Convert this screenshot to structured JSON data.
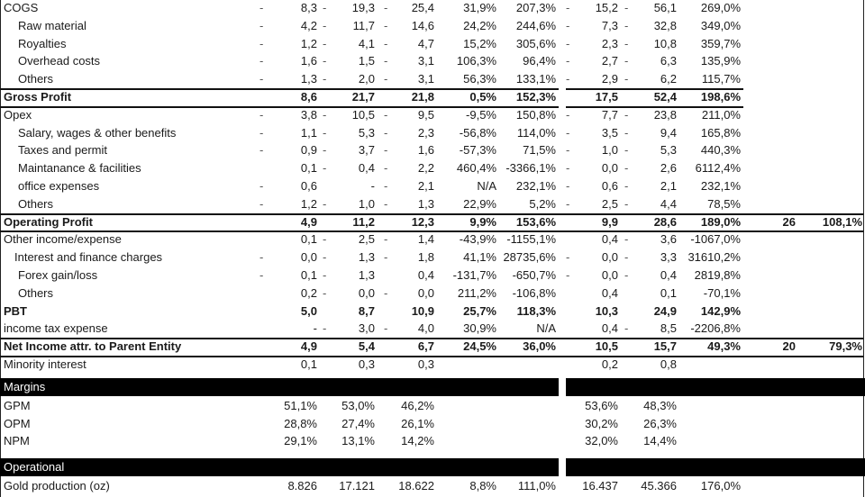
{
  "income_statement": {
    "rows": [
      {
        "label": "COGS",
        "indent": 0,
        "bold": false,
        "d0": "-",
        "a": "8,3",
        "da": "-",
        "b": "19,3",
        "db": "-",
        "c": "25,4",
        "d": "31,9%",
        "e": "207,3%",
        "d1": "-",
        "f": "15,2",
        "df": "-",
        "g": "56,1",
        "h": "269,0%",
        "i": "",
        "j": ""
      },
      {
        "label": "Raw material",
        "indent": 1,
        "bold": false,
        "d0": "-",
        "a": "4,2",
        "da": "-",
        "b": "11,7",
        "db": "-",
        "c": "14,6",
        "d": "24,2%",
        "e": "244,6%",
        "d1": "-",
        "f": "7,3",
        "df": "-",
        "g": "32,8",
        "h": "349,0%",
        "i": "",
        "j": ""
      },
      {
        "label": "Royalties",
        "indent": 1,
        "bold": false,
        "d0": "-",
        "a": "1,2",
        "da": "-",
        "b": "4,1",
        "db": "-",
        "c": "4,7",
        "d": "15,2%",
        "e": "305,6%",
        "d1": "-",
        "f": "2,3",
        "df": "-",
        "g": "10,8",
        "h": "359,7%",
        "i": "",
        "j": ""
      },
      {
        "label": "Overhead costs",
        "indent": 1,
        "bold": false,
        "d0": "-",
        "a": "1,6",
        "da": "-",
        "b": "1,5",
        "db": "-",
        "c": "3,1",
        "d": "106,3%",
        "e": "96,4%",
        "d1": "-",
        "f": "2,7",
        "df": "-",
        "g": "6,3",
        "h": "135,9%",
        "i": "",
        "j": ""
      },
      {
        "label": "Others",
        "indent": 1,
        "bold": false,
        "d0": "-",
        "a": "1,3",
        "da": "-",
        "b": "2,0",
        "db": "-",
        "c": "3,1",
        "d": "56,3%",
        "e": "133,1%",
        "d1": "-",
        "f": "2,9",
        "df": "-",
        "g": "6,2",
        "h": "115,7%",
        "i": "",
        "j": ""
      },
      {
        "label": "Gross Profit",
        "indent": 0,
        "bold": true,
        "d0": "",
        "a": "8,6",
        "da": "",
        "b": "21,7",
        "db": "",
        "c": "21,8",
        "d": "0,5%",
        "e": "152,3%",
        "d1": "",
        "f": "17,5",
        "df": "",
        "g": "52,4",
        "h": "198,6%",
        "i": "",
        "j": ""
      },
      {
        "label": "Opex",
        "indent": 0,
        "bold": false,
        "d0": "-",
        "a": "3,8",
        "da": "-",
        "b": "10,5",
        "db": "-",
        "c": "9,5",
        "d": "-9,5%",
        "e": "150,8%",
        "d1": "-",
        "f": "7,7",
        "df": "-",
        "g": "23,8",
        "h": "211,0%",
        "i": "",
        "j": ""
      },
      {
        "label": "Salary, wages & other benefits",
        "indent": 1,
        "bold": false,
        "d0": "-",
        "a": "1,1",
        "da": "-",
        "b": "5,3",
        "db": "-",
        "c": "2,3",
        "d": "-56,8%",
        "e": "114,0%",
        "d1": "-",
        "f": "3,5",
        "df": "-",
        "g": "9,4",
        "h": "165,8%",
        "i": "",
        "j": ""
      },
      {
        "label": "Taxes and permit",
        "indent": 1,
        "bold": false,
        "d0": "-",
        "a": "0,9",
        "da": "-",
        "b": "3,7",
        "db": "-",
        "c": "1,6",
        "d": "-57,3%",
        "e": "71,5%",
        "d1": "-",
        "f": "1,0",
        "df": "-",
        "g": "5,3",
        "h": "440,3%",
        "i": "",
        "j": ""
      },
      {
        "label": "Maintanance & facilities",
        "indent": 1,
        "bold": false,
        "d0": "",
        "a": "0,1",
        "da": "-",
        "b": "0,4",
        "db": "-",
        "c": "2,2",
        "d": "460,4%",
        "e": "-3366,1%",
        "d1": "-",
        "f": "0,0",
        "df": "-",
        "g": "2,6",
        "h": "6112,4%",
        "i": "",
        "j": ""
      },
      {
        "label": "office expenses",
        "indent": 1,
        "bold": false,
        "d0": "-",
        "a": "0,6",
        "da": "",
        "b": "-",
        "db": "-",
        "c": "2,1",
        "d": "N/A",
        "e": "232,1%",
        "d1": "-",
        "f": "0,6",
        "df": "-",
        "g": "2,1",
        "h": "232,1%",
        "i": "",
        "j": ""
      },
      {
        "label": "Others",
        "indent": 1,
        "bold": false,
        "d0": "-",
        "a": "1,2",
        "da": "-",
        "b": "1,0",
        "db": "-",
        "c": "1,3",
        "d": "22,9%",
        "e": "5,2%",
        "d1": "-",
        "f": "2,5",
        "df": "-",
        "g": "4,4",
        "h": "78,5%",
        "i": "",
        "j": ""
      },
      {
        "label": "Operating Profit",
        "indent": 0,
        "bold": true,
        "d0": "",
        "a": "4,9",
        "da": "",
        "b": "11,2",
        "db": "",
        "c": "12,3",
        "d": "9,9%",
        "e": "153,6%",
        "d1": "",
        "f": "9,9",
        "df": "",
        "g": "28,6",
        "h": "189,0%",
        "i": "26",
        "j": "108,1%"
      },
      {
        "label": "Other income/expense",
        "indent": 0,
        "bold": false,
        "d0": "",
        "a": "0,1",
        "da": "-",
        "b": "2,5",
        "db": "-",
        "c": "1,4",
        "d": "-43,9%",
        "e": "-1155,1%",
        "d1": "",
        "f": "0,4",
        "df": "-",
        "g": "3,6",
        "h": "-1067,0%",
        "i": "",
        "j": ""
      },
      {
        "label": "Interest and finance charges",
        "indent": 2,
        "bold": false,
        "d0": "-",
        "a": "0,0",
        "da": "-",
        "b": "1,3",
        "db": "-",
        "c": "1,8",
        "d": "41,1%",
        "e": "28735,6%",
        "d1": "-",
        "f": "0,0",
        "df": "-",
        "g": "3,3",
        "h": "31610,2%",
        "i": "",
        "j": ""
      },
      {
        "label": "Forex gain/loss",
        "indent": 1,
        "bold": false,
        "d0": "-",
        "a": "0,1",
        "da": "-",
        "b": "1,3",
        "db": "",
        "c": "0,4",
        "d": "-131,7%",
        "e": "-650,7%",
        "d1": "-",
        "f": "0,0",
        "df": "-",
        "g": "0,4",
        "h": "2819,8%",
        "i": "",
        "j": ""
      },
      {
        "label": "Others",
        "indent": 1,
        "bold": false,
        "d0": "",
        "a": "0,2",
        "da": "-",
        "b": "0,0",
        "db": "-",
        "c": "0,0",
        "d": "211,2%",
        "e": "-106,8%",
        "d1": "",
        "f": "0,4",
        "df": "",
        "g": "0,1",
        "h": "-70,1%",
        "i": "",
        "j": ""
      },
      {
        "label": "PBT",
        "indent": 0,
        "bold": true,
        "d0": "",
        "a": "5,0",
        "da": "",
        "b": "8,7",
        "db": "",
        "c": "10,9",
        "d": "25,7%",
        "e": "118,3%",
        "d1": "",
        "f": "10,3",
        "df": "",
        "g": "24,9",
        "h": "142,9%",
        "i": "",
        "j": ""
      },
      {
        "label": "income tax expense",
        "indent": 0,
        "bold": false,
        "d0": "",
        "a": "-",
        "da": "-",
        "b": "3,0",
        "db": "-",
        "c": "4,0",
        "d": "30,9%",
        "e": "N/A",
        "d1": "",
        "f": "0,4",
        "df": "-",
        "g": "8,5",
        "h": "-2206,8%",
        "i": "",
        "j": ""
      },
      {
        "label": "Net Income attr. to Parent Entity",
        "indent": 0,
        "bold": true,
        "d0": "",
        "a": "4,9",
        "da": "",
        "b": "5,4",
        "db": "",
        "c": "6,7",
        "d": "24,5%",
        "e": "36,0%",
        "d1": "",
        "f": "10,5",
        "df": "",
        "g": "15,7",
        "h": "49,3%",
        "i": "20",
        "j": "79,3%"
      },
      {
        "label": "Minority interest",
        "indent": 0,
        "bold": false,
        "d0": "",
        "a": "0,1",
        "da": "",
        "b": "0,3",
        "db": "",
        "c": "0,3",
        "d": "",
        "e": "",
        "d1": "",
        "f": "0,2",
        "df": "",
        "g": "0,8",
        "h": "",
        "i": "",
        "j": ""
      }
    ]
  },
  "margins": {
    "header": "Margins",
    "rows": [
      {
        "label": "GPM",
        "a": "51,1%",
        "b": "53,0%",
        "c": "46,2%",
        "f": "53,6%",
        "g": "48,3%"
      },
      {
        "label": "OPM",
        "a": "28,8%",
        "b": "27,4%",
        "c": "26,1%",
        "f": "30,2%",
        "g": "26,3%"
      },
      {
        "label": "NPM",
        "a": "29,1%",
        "b": "13,1%",
        "c": "14,2%",
        "f": "32,0%",
        "g": "14,4%"
      }
    ]
  },
  "operational": {
    "header": "Operational",
    "rows": [
      {
        "label": "Gold production (oz)",
        "a": "8.826",
        "b": "17.121",
        "c": "18.622",
        "d": "8,8%",
        "e": "111,0%",
        "f": "16.437",
        "g": "45.366",
        "h": "176,0%"
      }
    ]
  }
}
